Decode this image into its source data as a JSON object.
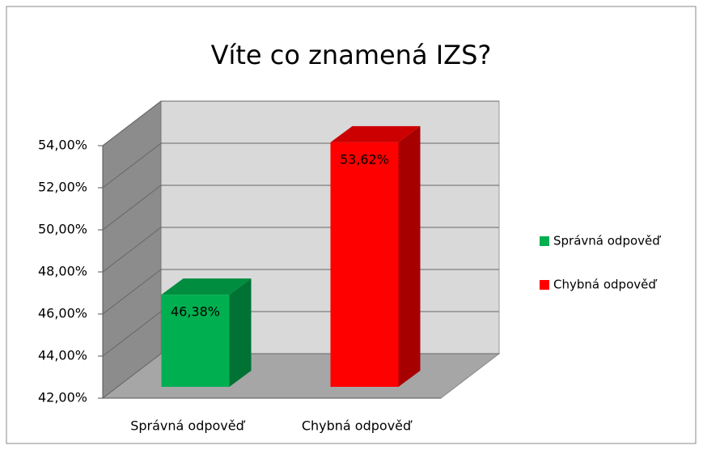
{
  "chart_data": {
    "type": "bar3d",
    "title": "Víte co znamená IZS?",
    "categories": [
      "Správná odpověď",
      "Chybná odpověď"
    ],
    "values": [
      46.38,
      53.62
    ],
    "value_labels": [
      "46,38%",
      "53,62%"
    ],
    "colors": [
      "#00b050",
      "#ff0000"
    ],
    "ylim": [
      42,
      54
    ],
    "yticks": [
      {
        "value": 42,
        "label": "42,00%"
      },
      {
        "value": 44,
        "label": "44,00%"
      },
      {
        "value": 46,
        "label": "46,00%"
      },
      {
        "value": 48,
        "label": "48,00%"
      },
      {
        "value": 50,
        "label": "50,00%"
      },
      {
        "value": 52,
        "label": "52,00%"
      },
      {
        "value": 54,
        "label": "54,00%"
      }
    ],
    "grid": true,
    "legend": "right"
  }
}
